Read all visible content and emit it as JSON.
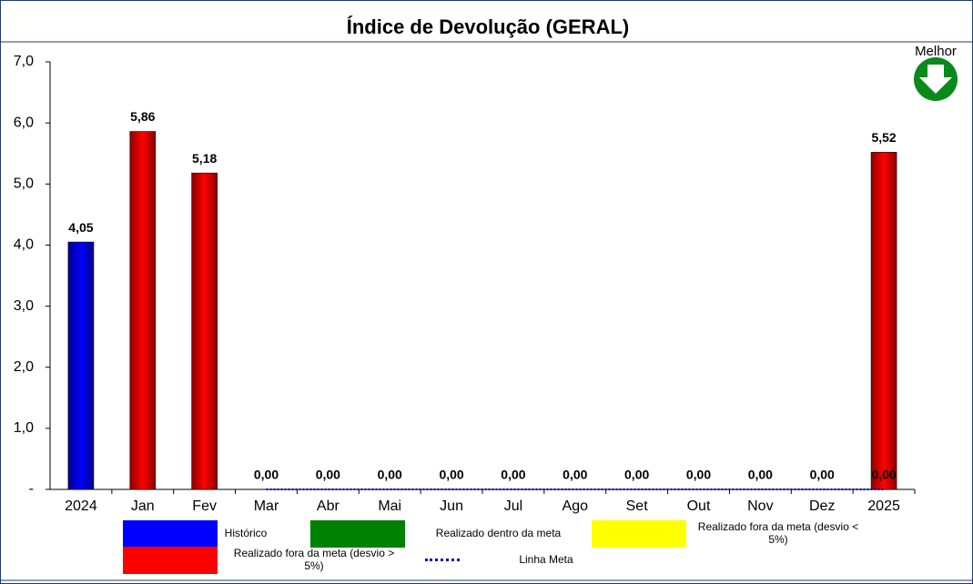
{
  "chart_data": {
    "type": "bar",
    "title": "Índice de Devolução (GERAL)",
    "annotation": "Melhor",
    "categories": [
      "2024",
      "Jan",
      "Fev",
      "Mar",
      "Abr",
      "Mai",
      "Jun",
      "Jul",
      "Ago",
      "Set",
      "Out",
      "Nov",
      "Dez",
      "2025"
    ],
    "series": [
      {
        "name": "Histórico",
        "color": "#0000ff",
        "values": [
          4.05,
          null,
          null,
          null,
          null,
          null,
          null,
          null,
          null,
          null,
          null,
          null,
          null,
          null
        ],
        "value_labels": [
          "4,05",
          null,
          null,
          null,
          null,
          null,
          null,
          null,
          null,
          null,
          null,
          null,
          null,
          null
        ]
      },
      {
        "name": "Realizado dentro da meta",
        "color": "#008000",
        "values": [
          null,
          null,
          null,
          null,
          null,
          null,
          null,
          null,
          null,
          null,
          null,
          null,
          null,
          null
        ]
      },
      {
        "name": "Realizado fora da meta (desvio < 5%)",
        "color": "#ffff00",
        "values": [
          null,
          null,
          null,
          null,
          null,
          null,
          null,
          null,
          null,
          null,
          null,
          null,
          null,
          null
        ]
      },
      {
        "name": "Realizado fora da meta (desvio > 5%)",
        "color": "#ff0000",
        "values": [
          null,
          5.86,
          5.18,
          null,
          null,
          null,
          null,
          null,
          null,
          null,
          null,
          null,
          null,
          5.52
        ],
        "value_labels": [
          null,
          "5,86",
          "5,18",
          null,
          null,
          null,
          null,
          null,
          null,
          null,
          null,
          null,
          null,
          "5,52"
        ]
      },
      {
        "name": "Linha Meta",
        "color": "#0000cc",
        "kind": "line",
        "values": [
          null,
          null,
          null,
          0,
          0,
          0,
          0,
          0,
          0,
          0,
          0,
          0,
          0,
          0
        ],
        "value_labels": [
          null,
          null,
          null,
          "0,00",
          "0,00",
          "0,00",
          "0,00",
          "0,00",
          "0,00",
          "0,00",
          "0,00",
          "0,00",
          "0,00",
          "0,00"
        ]
      }
    ],
    "ylim": [
      0,
      7
    ],
    "yticks": [
      {
        "value": 0,
        "label": "-"
      },
      {
        "value": 1,
        "label": "1,0"
      },
      {
        "value": 2,
        "label": "2,0"
      },
      {
        "value": 3,
        "label": "3,0"
      },
      {
        "value": 4,
        "label": "4,0"
      },
      {
        "value": 5,
        "label": "5,0"
      },
      {
        "value": 6,
        "label": "6,0"
      },
      {
        "value": 7,
        "label": "7,0"
      }
    ],
    "grid": false
  }
}
